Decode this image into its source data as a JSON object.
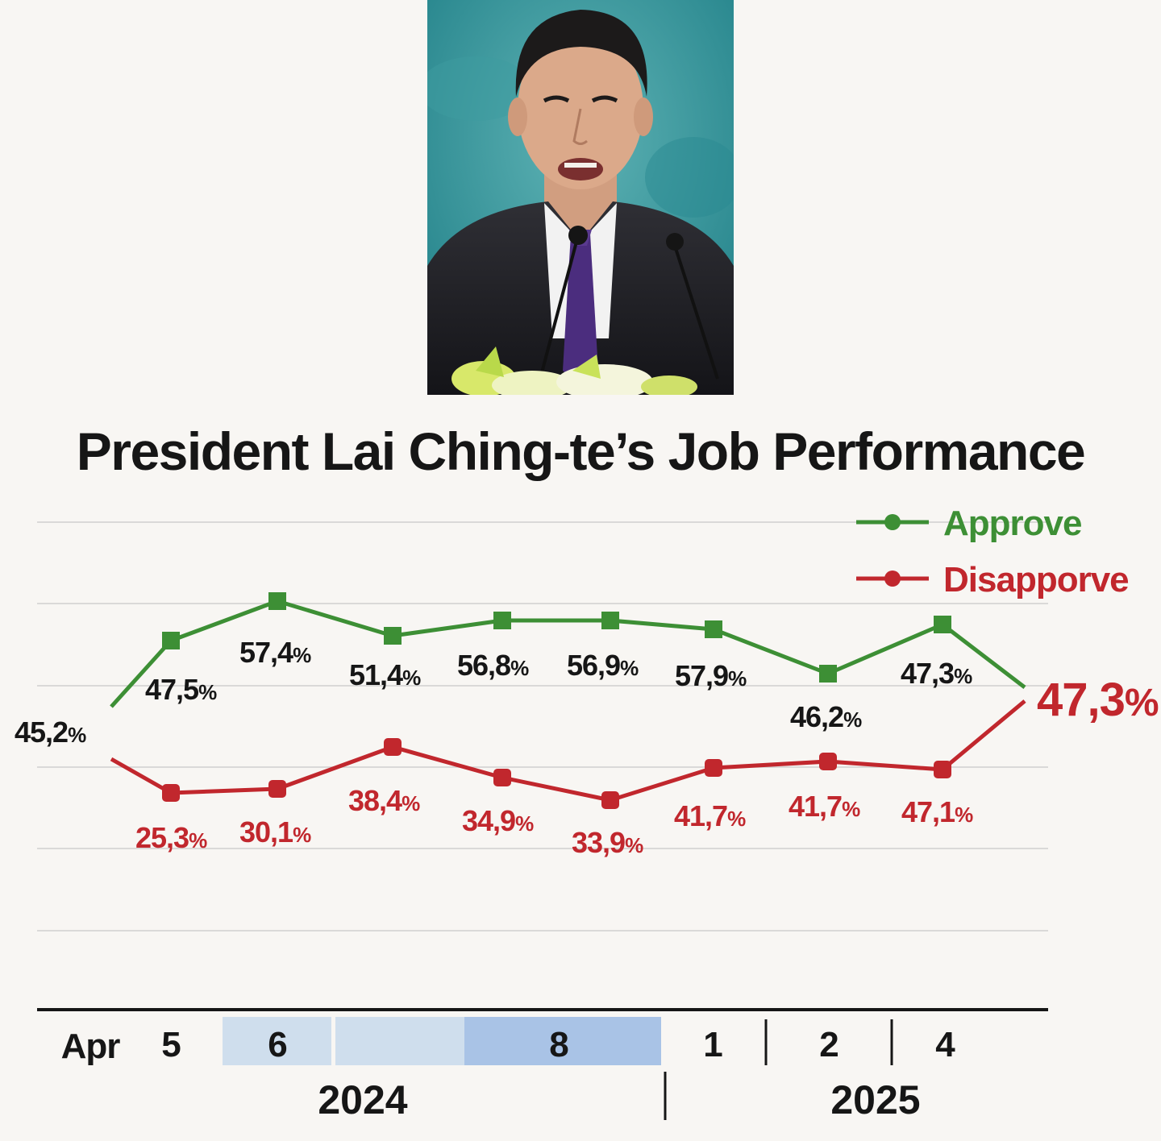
{
  "title": "President Lai Ching-te’s Job Performance",
  "colors": {
    "approve": "#3d8f35",
    "disapprove": "#c1272d",
    "text": "#161616",
    "band_light": "#cfdeed",
    "band_dark": "#a9c3e6"
  },
  "chart_data": {
    "type": "line",
    "title": "President Lai Ching-te’s Job Performance",
    "legend": "top-right",
    "grid": true,
    "x_tick_labels": [
      "Apr",
      "5",
      "6",
      "8",
      "1",
      "2",
      "4"
    ],
    "x_group_labels": [
      "2024",
      "2025"
    ],
    "series": [
      {
        "name": "Approve",
        "values": [
          45.2,
          47.5,
          57.4,
          51.4,
          56.8,
          56.9,
          57.9,
          46.2,
          47.3,
          47.3
        ],
        "labels": [
          "45,2%",
          "47,5%",
          "57,4%",
          "51,4%",
          "56,8%",
          "56,9%",
          "57,9%",
          "46,2%",
          "47,3%",
          ""
        ]
      },
      {
        "name": "Disapporve",
        "values": [
          null,
          25.3,
          30.1,
          38.4,
          34.9,
          33.9,
          41.7,
          41.7,
          47.1,
          47.3
        ],
        "labels": [
          "",
          "25,3%",
          "30,1%",
          "38,4%",
          "34,9%",
          "33,9%",
          "41,7%",
          "41,7%",
          "47,1%",
          "47,3%"
        ]
      }
    ]
  }
}
